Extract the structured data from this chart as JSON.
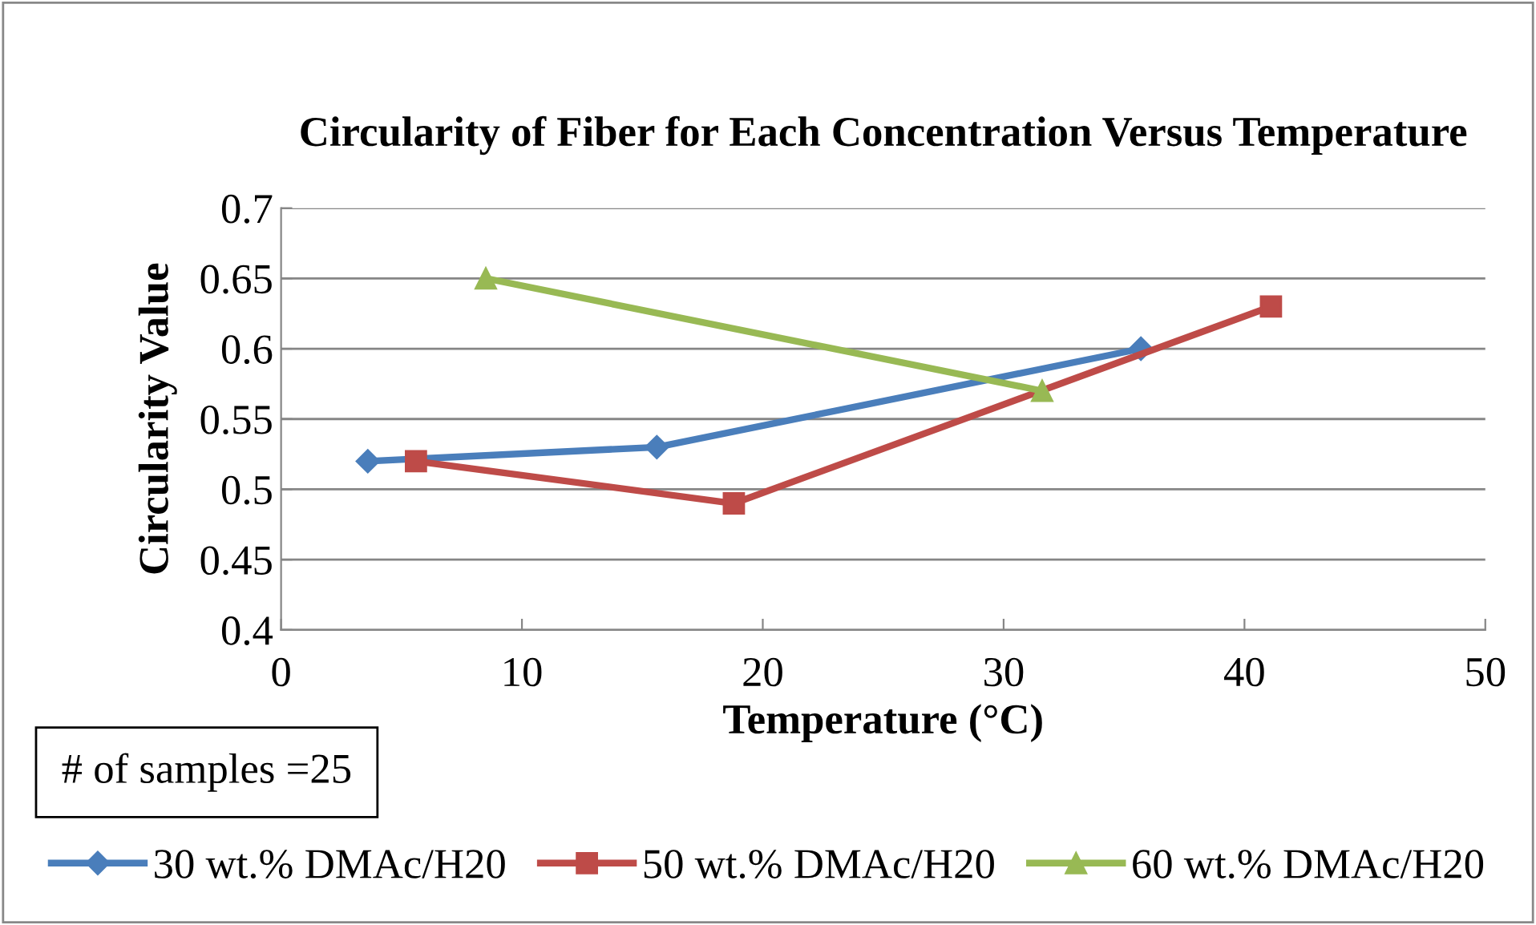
{
  "chart_data": {
    "type": "line",
    "title": "Circularity of Fiber for Each Concentration Versus Temperature",
    "xlabel": "Temperature (°C)",
    "ylabel": "Circularity Value",
    "series": [
      {
        "name": "30 wt.% DMAc/H20",
        "color": "#4a7ebb",
        "marker": "diamond",
        "x": [
          3.6,
          15.6,
          35.7
        ],
        "values": [
          0.52,
          0.53,
          0.6
        ]
      },
      {
        "name": "50 wt.% DMAc/H20",
        "color": "#be4b48",
        "marker": "square",
        "x": [
          5.6,
          18.8,
          41.1
        ],
        "values": [
          0.52,
          0.49,
          0.63
        ]
      },
      {
        "name": "60 wt.% DMAc/H20",
        "color": "#98b954",
        "marker": "triangle",
        "x": [
          8.5,
          31.6
        ],
        "values": [
          0.65,
          0.57
        ]
      }
    ],
    "xlim": [
      0,
      50
    ],
    "xticks": [
      0,
      10,
      20,
      30,
      40,
      50
    ],
    "ylim": [
      0.4,
      0.7
    ],
    "yticks": [
      0.4,
      0.45,
      0.5,
      0.55,
      0.6,
      0.65,
      0.7
    ],
    "grid": "y",
    "legend": "bottom",
    "annotations": [
      "# of samples =25"
    ]
  }
}
